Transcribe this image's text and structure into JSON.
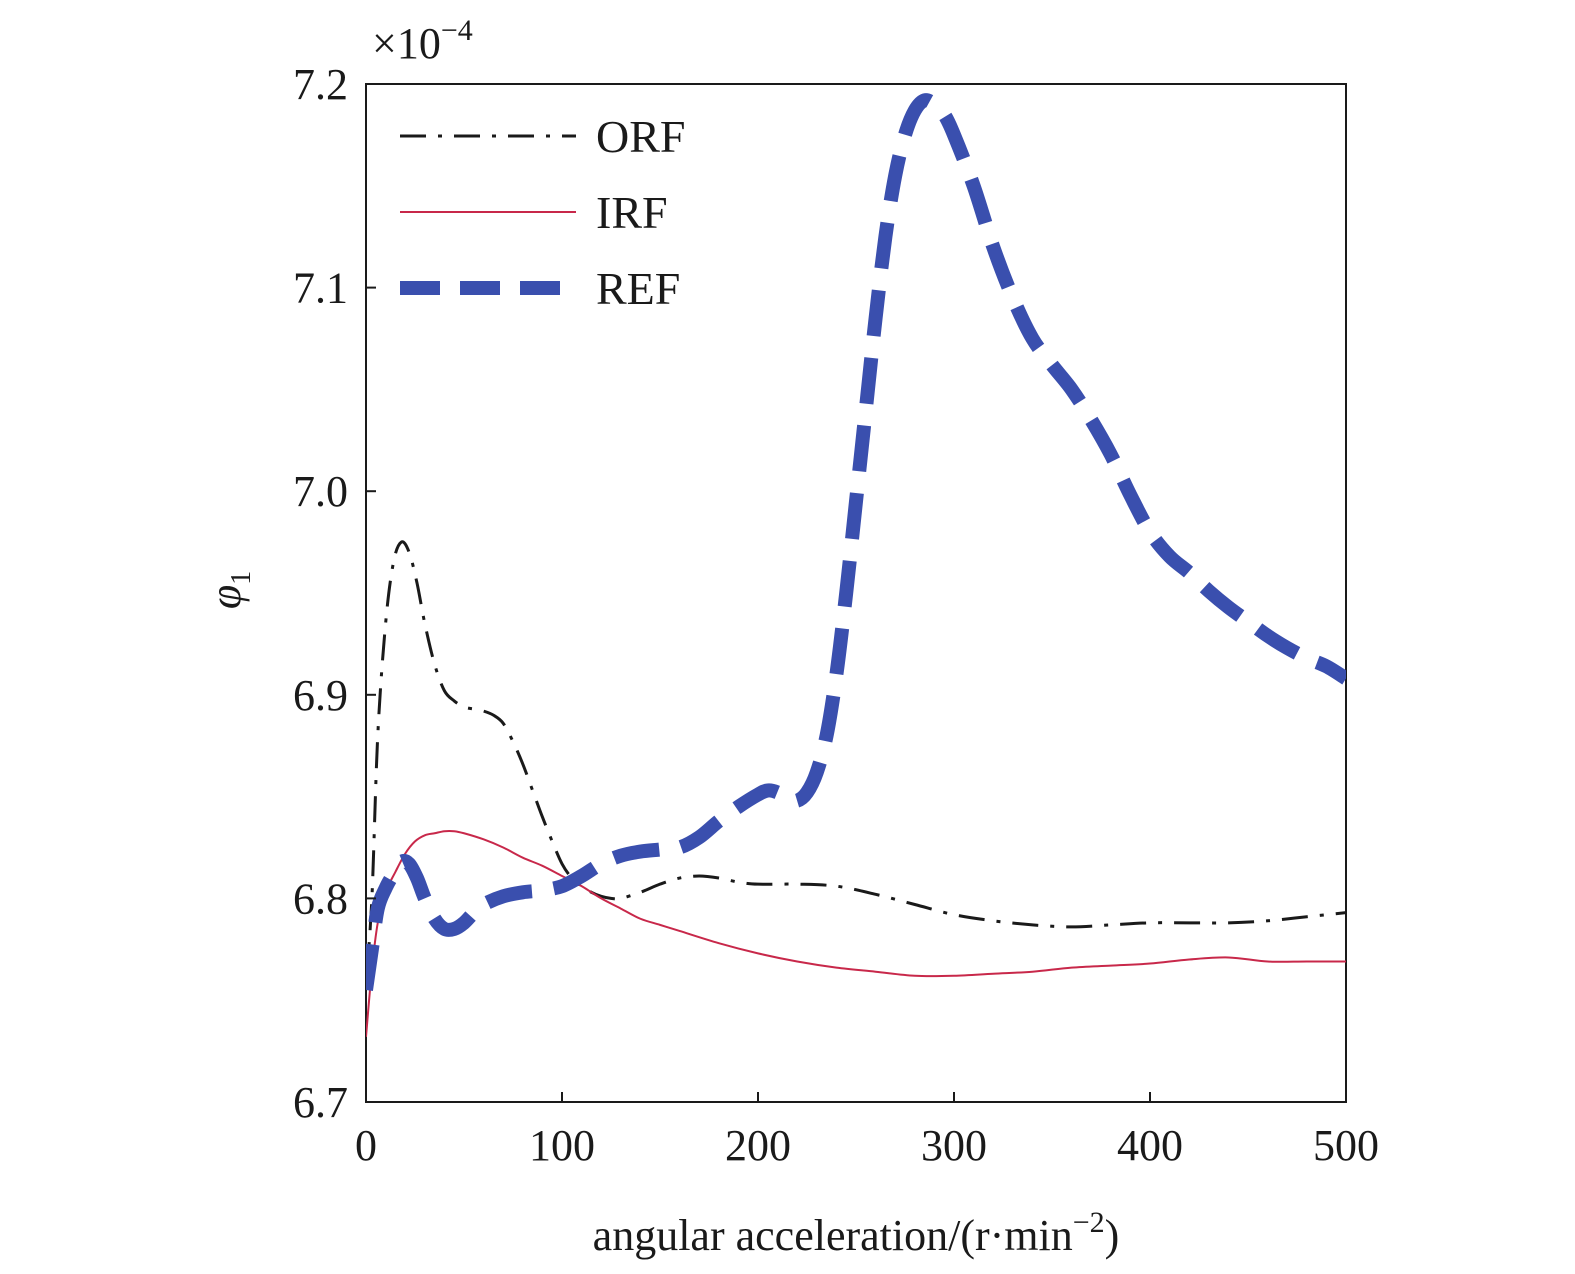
{
  "chart_data": {
    "type": "line",
    "title": "",
    "xlabel_main": "angular acceleration/(r·min",
    "xlabel_sup": "−2",
    "xlabel_close": ")",
    "ylabel_symbol": "φ",
    "ylabel_sub": "1",
    "y_multiplier_base": "×10",
    "y_multiplier_exp": "−4",
    "xlim": [
      0,
      500
    ],
    "ylim": [
      6.7,
      7.2
    ],
    "x_ticks": [
      0,
      100,
      200,
      300,
      400,
      500
    ],
    "x_tick_labels": [
      "0",
      "100",
      "200",
      "300",
      "400",
      "500"
    ],
    "y_ticks": [
      6.7,
      6.8,
      6.9,
      7.0,
      7.1,
      7.2
    ],
    "y_tick_labels": [
      "6.7",
      "6.8",
      "6.9",
      "7.0",
      "7.1",
      "7.2"
    ],
    "legend_position": "top-left",
    "series": [
      {
        "name": "ORF",
        "color": "#1a1a1a",
        "style": "dash-dot",
        "x": [
          0,
          3,
          6,
          10,
          14,
          18,
          22,
          26,
          30,
          35,
          40,
          45,
          50,
          55,
          60,
          65,
          70,
          75,
          80,
          85,
          90,
          95,
          100,
          105,
          110,
          115,
          120,
          125,
          130,
          140,
          150,
          160,
          170,
          180,
          190,
          200,
          220,
          240,
          260,
          280,
          300,
          320,
          340,
          360,
          380,
          400,
          420,
          440,
          460,
          480,
          500
        ],
        "y": [
          6.758,
          6.8,
          6.88,
          6.935,
          6.965,
          6.975,
          6.97,
          6.955,
          6.935,
          6.915,
          6.902,
          6.897,
          6.894,
          6.893,
          6.892,
          6.89,
          6.886,
          6.877,
          6.866,
          6.853,
          6.84,
          6.828,
          6.817,
          6.81,
          6.806,
          6.803,
          6.801,
          6.8,
          6.8,
          6.803,
          6.807,
          6.81,
          6.811,
          6.81,
          6.808,
          6.807,
          6.807,
          6.806,
          6.802,
          6.797,
          6.792,
          6.789,
          6.787,
          6.786,
          6.787,
          6.788,
          6.788,
          6.788,
          6.789,
          6.791,
          6.793
        ]
      },
      {
        "name": "IRF",
        "color": "#c8284a",
        "style": "solid",
        "x": [
          0,
          3,
          6,
          10,
          15,
          20,
          25,
          30,
          35,
          40,
          45,
          50,
          60,
          70,
          80,
          90,
          100,
          110,
          120,
          130,
          140,
          150,
          160,
          180,
          200,
          220,
          240,
          260,
          280,
          300,
          320,
          340,
          360,
          380,
          400,
          420,
          440,
          460,
          480,
          500
        ],
        "y": [
          6.732,
          6.765,
          6.788,
          6.803,
          6.813,
          6.822,
          6.828,
          6.831,
          6.832,
          6.833,
          6.833,
          6.832,
          6.829,
          6.825,
          6.82,
          6.816,
          6.811,
          6.806,
          6.8,
          6.795,
          6.79,
          6.787,
          6.784,
          6.778,
          6.773,
          6.769,
          6.766,
          6.764,
          6.762,
          6.762,
          6.763,
          6.764,
          6.766,
          6.767,
          6.768,
          6.77,
          6.771,
          6.769,
          6.769,
          6.769
        ]
      },
      {
        "name": "REF",
        "color": "#3a4fae",
        "style": "thick-dashed",
        "x": [
          0,
          3,
          6,
          10,
          14,
          18,
          22,
          26,
          30,
          35,
          40,
          45,
          50,
          55,
          60,
          70,
          80,
          90,
          100,
          110,
          120,
          130,
          140,
          150,
          160,
          170,
          180,
          190,
          200,
          205,
          210,
          215,
          220,
          225,
          230,
          235,
          240,
          245,
          250,
          255,
          260,
          265,
          270,
          275,
          280,
          285,
          290,
          295,
          300,
          310,
          320,
          330,
          340,
          350,
          360,
          370,
          380,
          390,
          400,
          410,
          420,
          430,
          440,
          450,
          460,
          470,
          480,
          490,
          500
        ],
        "y": [
          6.755,
          6.775,
          6.795,
          6.805,
          6.812,
          6.818,
          6.817,
          6.81,
          6.8,
          6.79,
          6.785,
          6.785,
          6.788,
          6.793,
          6.797,
          6.801,
          6.803,
          6.804,
          6.806,
          6.811,
          6.817,
          6.821,
          6.823,
          6.824,
          6.825,
          6.83,
          6.838,
          6.845,
          6.851,
          6.853,
          6.852,
          6.849,
          6.848,
          6.852,
          6.862,
          6.88,
          6.91,
          6.95,
          6.995,
          7.04,
          7.085,
          7.125,
          7.155,
          7.175,
          7.187,
          7.192,
          7.19,
          7.185,
          7.175,
          7.15,
          7.12,
          7.095,
          7.075,
          7.062,
          7.05,
          7.035,
          7.018,
          6.998,
          6.98,
          6.968,
          6.96,
          6.951,
          6.943,
          6.936,
          6.929,
          6.923,
          6.918,
          6.914,
          6.908
        ]
      }
    ]
  }
}
